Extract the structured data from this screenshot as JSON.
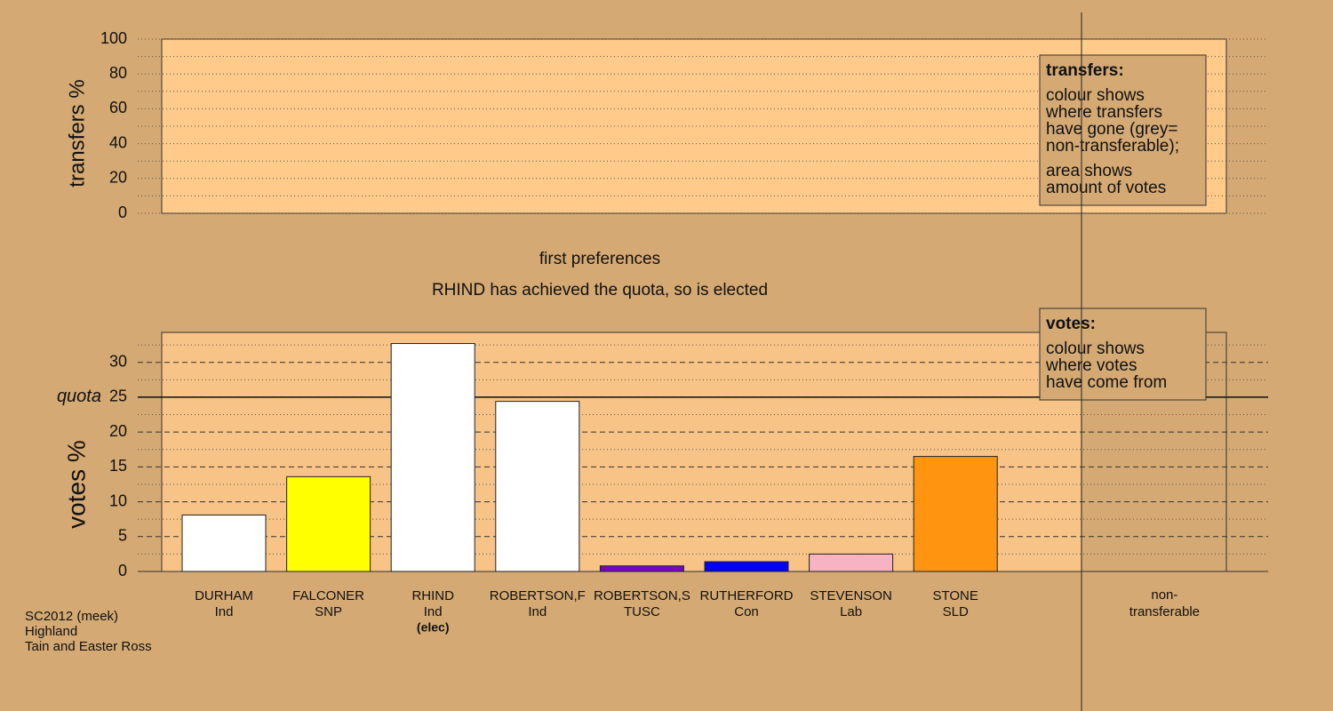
{
  "chart_data": [
    {
      "type": "bar",
      "ylabel": "transfers %",
      "ylim": [
        0,
        100
      ],
      "yticks": [
        0,
        20,
        40,
        60,
        80,
        100
      ],
      "minor_yticks": [
        10,
        30,
        50,
        70,
        90
      ],
      "legend": {
        "title": "transfers:",
        "lines": [
          [
            "colour shows",
            "where transfers",
            "have gone (grey=",
            "non-transferable);"
          ],
          [
            "area shows",
            "amount of votes"
          ]
        ]
      }
    },
    {
      "type": "bar",
      "title": "first preferences",
      "subtitle": "RHIND has achieved the quota, so is elected",
      "ylabel": "votes %",
      "ylim": [
        0,
        34.3
      ],
      "yticks": [
        0,
        5,
        10,
        15,
        20,
        25,
        30
      ],
      "minor_yticks": [
        2.5,
        7.5,
        12.5,
        17.5,
        22.5,
        27.5,
        32.5
      ],
      "quota": {
        "value": 25,
        "label": "quota"
      },
      "categories": [
        "DURHAM",
        "FALCONER",
        "RHIND",
        "ROBERTSON,F",
        "ROBERTSON,S",
        "RUTHERFORD",
        "STEVENSON",
        "STONE"
      ],
      "parties": [
        "Ind",
        "SNP",
        "Ind",
        "Ind",
        "TUSC",
        "Con",
        "Lab",
        "SLD"
      ],
      "notes": [
        null,
        null,
        "(elec)",
        null,
        null,
        null,
        null,
        null
      ],
      "colors": [
        "#ffffff",
        "#ffff00",
        "#ffffff",
        "#ffffff",
        "#7a00c8",
        "#0000ff",
        "#f7b3c4",
        "#ff9410"
      ],
      "values": [
        8.1,
        13.6,
        32.7,
        24.4,
        0.8,
        1.4,
        2.5,
        16.5
      ],
      "other_category": [
        "non-",
        "transferable"
      ],
      "legend": {
        "title": "votes:",
        "lines": [
          [
            "colour shows",
            "where votes",
            "have come from"
          ]
        ]
      }
    }
  ],
  "footer": [
    "SC2012 (meek)",
    "Highland",
    "Tain and Easter Ross"
  ]
}
